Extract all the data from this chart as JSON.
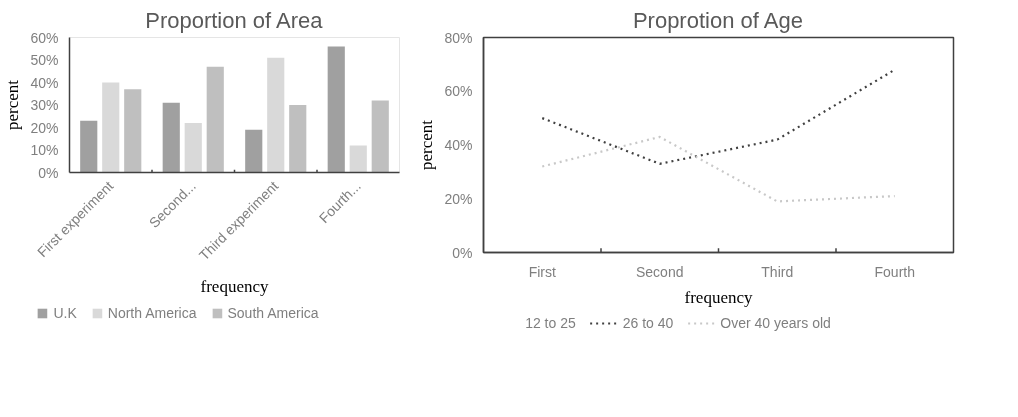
{
  "chart_data": [
    {
      "type": "bar",
      "title": "Proportion of Area",
      "xlabel": "frequency",
      "ylabel": "percent",
      "categories": [
        "First experiment",
        "Second...",
        "Third experiment",
        "Fourth..."
      ],
      "series": [
        {
          "name": "U.K",
          "color": "#a0a0a0",
          "values": [
            23,
            31,
            19,
            56
          ]
        },
        {
          "name": "North America",
          "color": "#d9d9d9",
          "values": [
            40,
            22,
            51,
            12
          ]
        },
        {
          "name": "South America",
          "color": "#bfbfbf",
          "values": [
            37,
            47,
            30,
            32
          ]
        }
      ],
      "ylim": [
        0,
        60
      ],
      "yticks": [
        {
          "value": 0,
          "label": "0%"
        },
        {
          "value": 10,
          "label": "10%"
        },
        {
          "value": 20,
          "label": "20%"
        },
        {
          "value": 30,
          "label": "30%"
        },
        {
          "value": 40,
          "label": "40%"
        },
        {
          "value": 50,
          "label": "50%"
        },
        {
          "value": 60,
          "label": "60%"
        }
      ],
      "grid": false,
      "legend": "bottom"
    },
    {
      "type": "line",
      "title": "Proprotion of Age",
      "xlabel": "frequency",
      "ylabel": "percent",
      "categories": [
        "First",
        "Second",
        "Third",
        "Fourth"
      ],
      "series": [
        {
          "name": "12 to 25",
          "values": [
            null,
            null,
            null,
            null
          ]
        },
        {
          "name": "26 to 40",
          "color": "#404040",
          "values": [
            50,
            33,
            42,
            68
          ]
        },
        {
          "name": "Over 40 years old",
          "color": "#c8c8c8",
          "values": [
            32,
            43,
            19,
            21
          ]
        }
      ],
      "ylim": [
        0,
        80
      ],
      "yticks": [
        {
          "value": 0,
          "label": "0%"
        },
        {
          "value": 20,
          "label": "20%"
        },
        {
          "value": 40,
          "label": "40%"
        },
        {
          "value": 60,
          "label": "60%"
        },
        {
          "value": 80,
          "label": "80%"
        }
      ],
      "grid": false,
      "legend": "bottom",
      "marker": "none",
      "line_style": "dotted"
    }
  ]
}
